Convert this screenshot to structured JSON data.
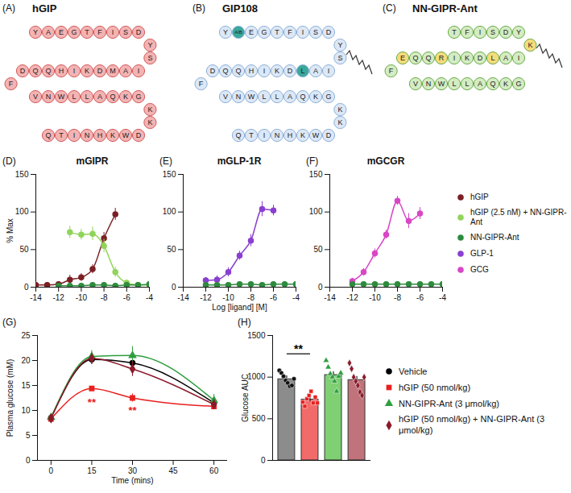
{
  "peptides": [
    {
      "panel": "(A)",
      "title": "hGIP",
      "fill": "#f4b3b3",
      "stroke": "#d35b5b",
      "highlight_color": "#f4b3b3",
      "segments": [
        [
          "Y",
          "A",
          "E",
          "G",
          "T",
          "F",
          "I",
          "S",
          "D"
        ],
        [
          "Y",
          "S"
        ],
        [
          "I",
          "A",
          "M",
          "D",
          "K",
          "I",
          "H",
          "Q",
          "Q",
          "D"
        ],
        [
          "F"
        ],
        [
          "V",
          "N",
          "W",
          "L",
          "L",
          "A",
          "Q",
          "K",
          "G"
        ],
        [
          "K",
          "K"
        ],
        [
          "D",
          "W",
          "K",
          "H",
          "N",
          "I",
          "T",
          "Q"
        ]
      ],
      "highlights": [],
      "lipid": false
    },
    {
      "panel": "(B)",
      "title": "GIP108",
      "fill": "#dce8f6",
      "stroke": "#8eb0d9",
      "highlight_color": "#3aa89b",
      "segments": [
        [
          "Y",
          "AIB",
          "E",
          "G",
          "T",
          "F",
          "I",
          "S",
          "D"
        ],
        [
          "Y",
          "S"
        ],
        [
          "I",
          "A",
          "L",
          "D",
          "K",
          "I",
          "H",
          "Q",
          "Q",
          "D"
        ],
        [
          "F"
        ],
        [
          "V",
          "N",
          "W",
          "L",
          "L",
          "A",
          "Q",
          "K",
          "G"
        ],
        [
          "K",
          "K"
        ],
        [
          "D",
          "W",
          "K",
          "H",
          "N",
          "I",
          "T",
          "Q"
        ]
      ],
      "highlights": [
        [
          0,
          1
        ],
        [
          2,
          2
        ]
      ],
      "lipid": true
    },
    {
      "panel": "(C)",
      "title": "NN-GIPR-Ant",
      "fill": "#d5ecc3",
      "stroke": "#6aab4a",
      "highlight_color": "#f5dc7a",
      "segments": [
        [
          "T",
          "F",
          "I",
          "S",
          "D",
          "Y"
        ],
        [
          "K"
        ],
        [
          "I",
          "A",
          "L",
          "D",
          "K",
          "I",
          "R",
          "Q",
          "Q",
          "E"
        ],
        [
          "F"
        ],
        [
          "V",
          "N",
          "W",
          "L",
          "L",
          "A",
          "Q",
          "K",
          "G"
        ]
      ],
      "highlights": [
        [
          1,
          0
        ],
        [
          2,
          2
        ],
        [
          2,
          6
        ],
        [
          2,
          9
        ]
      ],
      "lipid": true
    }
  ],
  "chart_data": [
    {
      "type": "line",
      "panel": "(D)",
      "title": "mGIPR",
      "y_label": "% Max",
      "xlim": [
        -14,
        -4
      ],
      "xticks": [
        -14,
        -12,
        -10,
        -8,
        -6,
        -4
      ],
      "ylim": [
        0,
        150
      ],
      "yticks": [
        0,
        50,
        100,
        150
      ],
      "series": [
        {
          "name": "hGIP",
          "color": "#7a1f24",
          "marker": "circle",
          "x": [
            -14,
            -13,
            -12,
            -11,
            -10,
            -9,
            -8,
            -7
          ],
          "values": [
            3,
            3,
            4,
            10,
            13,
            24,
            65,
            97
          ],
          "errors": [
            2,
            2,
            3,
            6,
            5,
            6,
            8,
            8
          ]
        },
        {
          "name": "hGIP (2.5 nM) + NN-GIPR-Ant",
          "color": "#90d45a",
          "marker": "circle",
          "x": [
            -11,
            -10,
            -9,
            -8,
            -7,
            -6,
            -5,
            -4
          ],
          "values": [
            73,
            70,
            71,
            55,
            20,
            6,
            3,
            3
          ],
          "errors": [
            8,
            7,
            9,
            9,
            7,
            3,
            2,
            2
          ]
        },
        {
          "name": "NN-GIPR-Ant",
          "color": "#2e8b3e",
          "marker": "circle",
          "x": [
            -12,
            -11,
            -10,
            -9,
            -8,
            -7,
            -6,
            -5,
            -4
          ],
          "values": [
            2,
            2,
            2,
            3,
            3,
            2,
            3,
            3,
            4
          ],
          "errors": [
            1,
            1,
            1,
            1,
            1,
            1,
            1,
            1,
            1
          ]
        }
      ]
    },
    {
      "type": "line",
      "panel": "(E)",
      "title": "mGLP-1R",
      "x_label": "Log [ligand] [M]",
      "xlim": [
        -14,
        -4
      ],
      "xticks": [
        -14,
        -12,
        -10,
        -8,
        -6,
        -4
      ],
      "ylim": [
        0,
        150
      ],
      "yticks": [
        0,
        50,
        100,
        150
      ],
      "series": [
        {
          "name": "GLP-1",
          "color": "#8a3fd1",
          "marker": "circle",
          "x": [
            -12,
            -11,
            -10,
            -9,
            -8,
            -7,
            -6
          ],
          "values": [
            9,
            10,
            20,
            42,
            62,
            104,
            102
          ],
          "errors": [
            4,
            5,
            6,
            6,
            8,
            10,
            7
          ]
        },
        {
          "name": "NN-GIPR-Ant",
          "color": "#2e8b3e",
          "marker": "circle",
          "x": [
            -12,
            -11,
            -10,
            -9,
            -8,
            -7,
            -6,
            -5,
            -4
          ],
          "values": [
            3,
            3,
            3,
            4,
            4,
            3,
            4,
            4,
            4
          ],
          "errors": [
            1,
            1,
            1,
            1,
            1,
            1,
            1,
            1,
            1
          ]
        }
      ]
    },
    {
      "type": "line",
      "panel": "(F)",
      "title": "mGCGR",
      "legend": "right",
      "xlim": [
        -14,
        -4
      ],
      "xticks": [
        -14,
        -12,
        -10,
        -8,
        -6,
        -4
      ],
      "ylim": [
        0,
        150
      ],
      "yticks": [
        0,
        50,
        100,
        150
      ],
      "series": [
        {
          "name": "GCG",
          "color": "#d847c6",
          "marker": "circle",
          "x": [
            -12,
            -11,
            -10,
            -9,
            -8,
            -7,
            -6
          ],
          "values": [
            8,
            20,
            45,
            70,
            115,
            88,
            98
          ],
          "errors": [
            4,
            5,
            6,
            6,
            6,
            10,
            8
          ]
        },
        {
          "name": "NN-GIPR-Ant",
          "color": "#2e8b3e",
          "marker": "circle",
          "x": [
            -12,
            -11,
            -10,
            -9,
            -8,
            -7,
            -6,
            -5,
            -4
          ],
          "values": [
            4,
            4,
            4,
            4,
            4,
            4,
            4,
            4,
            4
          ],
          "errors": [
            1,
            1,
            1,
            1,
            1,
            1,
            1,
            1,
            1
          ]
        }
      ]
    },
    {
      "type": "line",
      "panel": "(G)",
      "x_label": "Time (mins)",
      "y_label": "Plasma glucose (mM)",
      "legend": "right",
      "xlim": [
        -5,
        65
      ],
      "xticks": [
        0,
        15,
        30,
        45,
        60
      ],
      "ylim": [
        0,
        25
      ],
      "yticks": [
        0,
        5,
        10,
        15,
        20,
        25
      ],
      "series": [
        {
          "name": "Vehicle",
          "color": "#000000",
          "marker": "circle",
          "x": [
            0,
            15,
            30,
            60
          ],
          "values": [
            8.5,
            20.2,
            19.5,
            11.5
          ],
          "errors": [
            0.5,
            1.0,
            1.5,
            1.0
          ]
        },
        {
          "name": "hGIP (50 nmol/kg)",
          "color": "#e8201f",
          "marker": "square",
          "x": [
            0,
            15,
            30,
            60
          ],
          "values": [
            8.3,
            14.4,
            12.5,
            10.8
          ],
          "errors": [
            0.4,
            0.4,
            0.8,
            0.6
          ]
        },
        {
          "name": "NN-GIPR-Ant (3 μmol/kg)",
          "color": "#2e9e3e",
          "marker": "triangle",
          "x": [
            0,
            15,
            30,
            60
          ],
          "values": [
            8.6,
            20.8,
            21.0,
            12.0
          ],
          "errors": [
            0.5,
            1.2,
            1.8,
            1.2
          ]
        },
        {
          "name": "hGIP (50 nmol/kg) + NN-GIPR-Ant (3 μmol/kg)",
          "color": "#8b1a2a",
          "marker": "diamond",
          "x": [
            0,
            15,
            30,
            60
          ],
          "values": [
            8.4,
            20.4,
            18.3,
            11.2
          ],
          "errors": [
            0.5,
            1.0,
            1.5,
            1.0
          ]
        }
      ],
      "annotations": [
        {
          "x": 15,
          "y": 11.5,
          "text": "**",
          "color": "#e8201f"
        },
        {
          "x": 30,
          "y": 10.0,
          "text": "**",
          "color": "#e8201f"
        }
      ]
    },
    {
      "type": "bar",
      "panel": "(H)",
      "y_label": "Glucose AUC",
      "tick_labels": "y",
      "ylim": [
        0,
        1500
      ],
      "yticks": [
        0,
        500,
        1000,
        1500
      ],
      "categories": [
        null,
        null,
        null,
        null
      ],
      "values": [
        975,
        730,
        1025,
        965
      ],
      "errors": [
        40,
        25,
        40,
        45
      ],
      "colors": [
        "#8c8c8c",
        "#f26b6b",
        "#7fcf73",
        "#c0737a"
      ],
      "points": [
        {
          "color": "#111111",
          "marker": "circle",
          "values": [
            1080,
            1050,
            1010,
            960,
            930,
            890,
            900,
            980
          ]
        },
        {
          "color": "#e8201f",
          "marker": "square",
          "values": [
            700,
            650,
            740,
            780,
            830,
            690,
            760,
            690
          ]
        },
        {
          "color": "#2e9e3e",
          "marker": "triangle",
          "values": [
            1200,
            1120,
            1040,
            1000,
            950,
            830,
            1010,
            1050
          ]
        },
        {
          "color": "#8b1a2a",
          "marker": "diamond",
          "values": [
            1170,
            1100,
            1000,
            950,
            900,
            820,
            780,
            1000
          ]
        }
      ],
      "significance": {
        "from": 0,
        "to": 1,
        "y": 1280,
        "label": "**"
      }
    }
  ]
}
